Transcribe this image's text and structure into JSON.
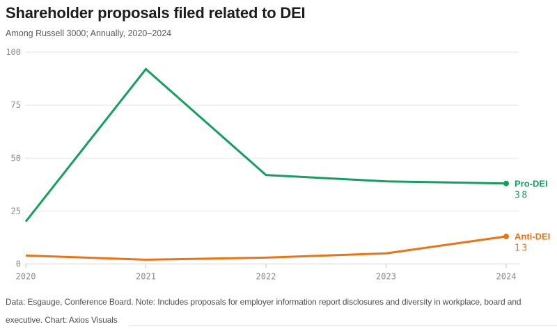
{
  "header": {
    "title": "Shareholder proposals filed related to DEI",
    "subtitle": "Among Russell 3000; Annually, 2020–2024"
  },
  "chart_data": {
    "type": "line",
    "x": [
      "2020",
      "2021",
      "2022",
      "2023",
      "2024"
    ],
    "series": [
      {
        "name": "Pro-DEI",
        "values": [
          20,
          92,
          42,
          39,
          38
        ],
        "color": "#12a05c",
        "end_label": "Pro-DEI",
        "end_value": "38"
      },
      {
        "name": "Anti-DEI",
        "values": [
          4,
          2,
          3,
          5,
          13
        ],
        "color": "#f0710f",
        "end_label": "Anti-DEI",
        "end_value": "13"
      }
    ],
    "yticks": [
      0,
      25,
      50,
      75,
      100
    ],
    "ylim": [
      0,
      100
    ],
    "grid": "horizontal",
    "legend_position": "right-end-labels",
    "title": "Shareholder proposals filed related to DEI",
    "xlabel": "",
    "ylabel": ""
  },
  "footer": {
    "note": "Data: Esgauge, Conference Board. Note: Includes proposals for employer information report disclosures and diversity in workplace, board and executive. Chart: Axios Visuals"
  },
  "colors": {
    "pro_dei": "#12a05c",
    "anti_dei": "#f0710f",
    "grid": "#e4e4e4",
    "zero_line": "#d8d8d8",
    "tick_mark": "#c4c4c4",
    "tick_text": "#8a8a8a",
    "title_text": "#1d1d1f",
    "subtitle_text": "#56595e",
    "footer_text": "#4f4f4f"
  }
}
